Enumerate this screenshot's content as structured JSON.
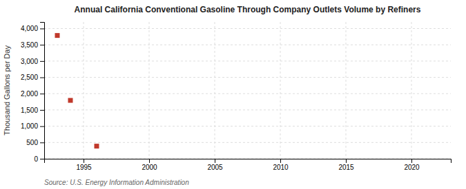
{
  "chart_data": {
    "type": "scatter",
    "title": "Annual California Conventional Gasoline Through Company Outlets Volume by Refiners",
    "y_label": "Thousand Gallons per Day",
    "source": "Source: U.S. Energy Information Administration",
    "x": [
      1993,
      1994,
      1996
    ],
    "values": [
      3786,
      1793,
      388
    ],
    "color": "#c0392b",
    "marker": "square",
    "xlim": [
      1992,
      2023
    ],
    "xticks": [
      1995,
      2000,
      2005,
      2010,
      2015,
      2020
    ],
    "ylim": [
      0,
      4200
    ],
    "yticks": [
      0,
      500,
      {
        "value": 1000,
        "label": "1,000"
      },
      {
        "value": 1500,
        "label": "1,500"
      },
      {
        "value": 2000,
        "label": "2,000"
      },
      {
        "value": 2500,
        "label": "2,500"
      },
      {
        "value": 3000,
        "label": "3,000"
      },
      {
        "value": 3500,
        "label": "3,500"
      },
      {
        "value": 4000,
        "label": "4,000"
      }
    ],
    "grid": true
  }
}
